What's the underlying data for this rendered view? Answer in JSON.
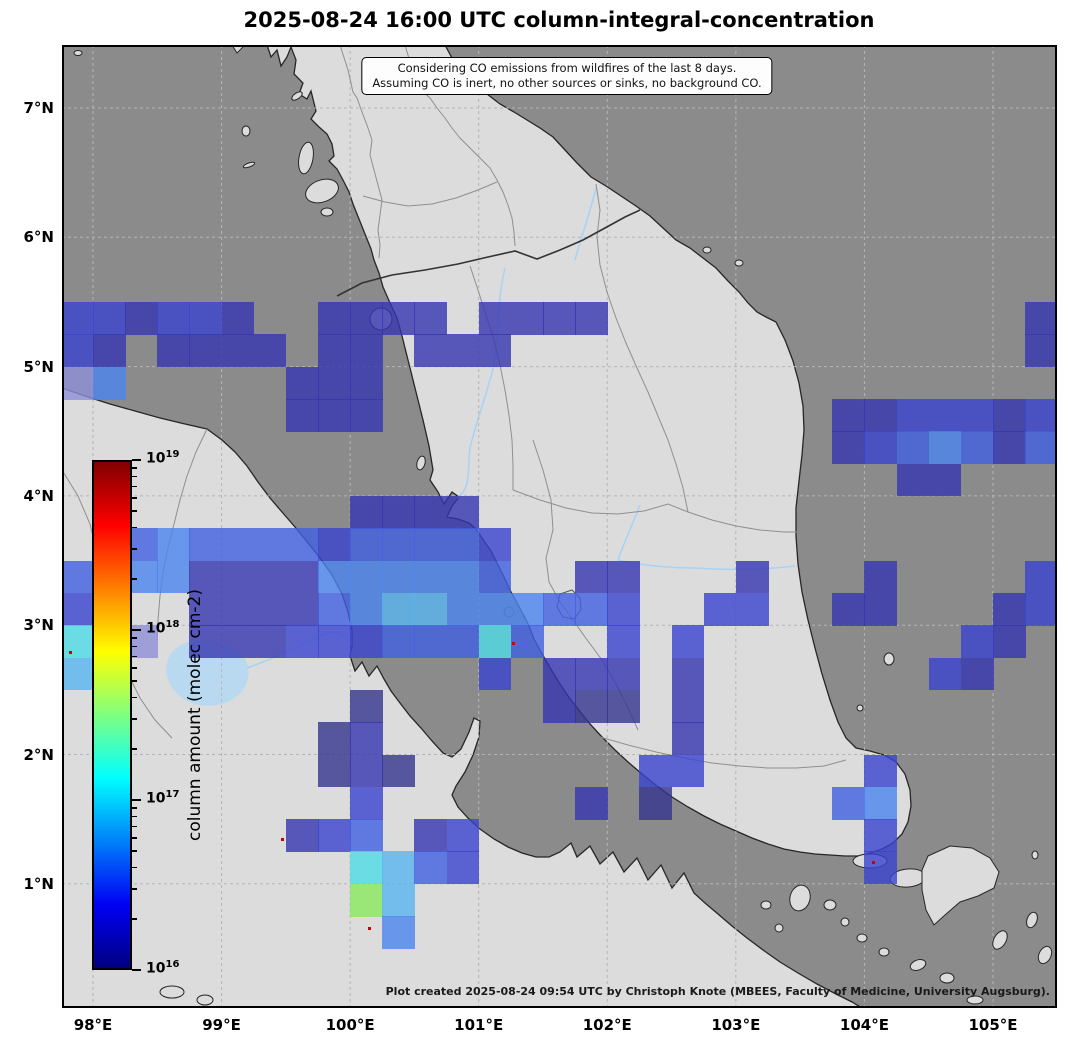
{
  "title": "2025-08-24 16:00 UTC column-integral-concentration",
  "annotation": {
    "line1": "Considering CO emissions from wildfires of the last 8 days.",
    "line2": "Assuming CO is inert, no other sources or sinks, no background CO."
  },
  "credit": "Plot created 2025-08-24 09:54 UTC by Christoph Knote (MBEES, Faculty of Medicine, University Augsburg).",
  "axes": {
    "x": {
      "labels": [
        "98°E",
        "99°E",
        "100°E",
        "101°E",
        "102°E",
        "103°E",
        "104°E",
        "105°E"
      ],
      "lons": [
        98,
        99,
        100,
        101,
        102,
        103,
        104,
        105
      ],
      "range_lon": [
        97.75,
        105.47
      ]
    },
    "y": {
      "labels": [
        "7°N",
        "6°N",
        "5°N",
        "4°N",
        "3°N",
        "2°N",
        "1°N"
      ],
      "lats": [
        7,
        6,
        5,
        4,
        3,
        2,
        1
      ],
      "range_lat": [
        0.04,
        7.49
      ]
    }
  },
  "colorbar": {
    "label": "column amount (molec cm-2)",
    "tick_base": "10",
    "tick_exponents": [
      19,
      18,
      17,
      16
    ],
    "scale": "log",
    "value_min": 1e+16,
    "value_max": 1e+19,
    "gradient_stops_bottom_to_top": [
      "#000080",
      "#0000f3",
      "#00ffff",
      "#ffff00",
      "#ff0000",
      "#800000"
    ],
    "gradient_stop_positions": [
      0,
      0.125,
      0.375,
      0.625,
      0.875,
      1
    ]
  },
  "colors": {
    "ocean": "#8b8b8b",
    "land": "#dcdcdc",
    "coastline": "#262626",
    "country_border": "#333333",
    "state_border": "#8f8f8f",
    "gridline": "#b5b5b5",
    "river": "#a9d3f5",
    "lake": "#b9d9f0",
    "fire_marker": "#cc0000"
  },
  "chart_data": {
    "type": "heatmap",
    "title": "2025-08-24 16:00 UTC column-integral-concentration",
    "units": "molec cm-2",
    "lon_range": [
      97.75,
      105.5
    ],
    "lat_range": [
      0.0,
      7.5
    ],
    "cell_size_deg": 0.25,
    "legend_position": "left-inside",
    "grid_on": true,
    "palette": {
      "1": "#34348f",
      "2": "#3636b0",
      "3": "#3a44cf",
      "4": "#4060e2",
      "5": "#4b84ee",
      "6": "#58b5ef",
      "7": "#50dce6",
      "8": "#8ae95e",
      "9": "#8e90d8"
    },
    "palette_approx_value_molec_cm2": {
      "1": 1.5e+16,
      "2": 2e+16,
      "3": 3e+16,
      "4": 5e+16,
      "5": 8e+16,
      "6": 1.3e+17,
      "7": 2e+17,
      "8": 4e+17,
      "9": 2.5e+16
    },
    "grid_rows_top_lat_7_5": [
      "...............................",
      "...............................",
      "...............................",
      "...............................",
      "...............................",
      "...............................",
      "...............................",
      "...............................",
      "332332..2222.2222.............2",
      "32.2222.22.222................2",
      "95.....222.....................",
      ".......222..............2233323",
      "........................2345424",
      "..........................22...",
      ".........2222..................",
      "..454444344443.................",
      "45552222555554..22...2...2....3",
      "39..22224566555443..33..22...23",
      "799.22233344474..3.3........32.",
      "6............3.222.2.......32..",
      ".........1.....211.2...........",
      "........12.........2...........",
      "........121.......33.....3.....",
      ".........3......2.1.....45.....",
      ".......234.23............3.....",
      ".........7643............3.....",
      ".........86....................",
      "..........5....................",
      "...............................",
      "..............................."
    ],
    "fire_markers_lonlat": [
      [
        97.82,
        2.79
      ],
      [
        101.27,
        2.86
      ],
      [
        99.47,
        1.35
      ],
      [
        100.15,
        0.66
      ],
      [
        104.07,
        1.17
      ]
    ]
  }
}
